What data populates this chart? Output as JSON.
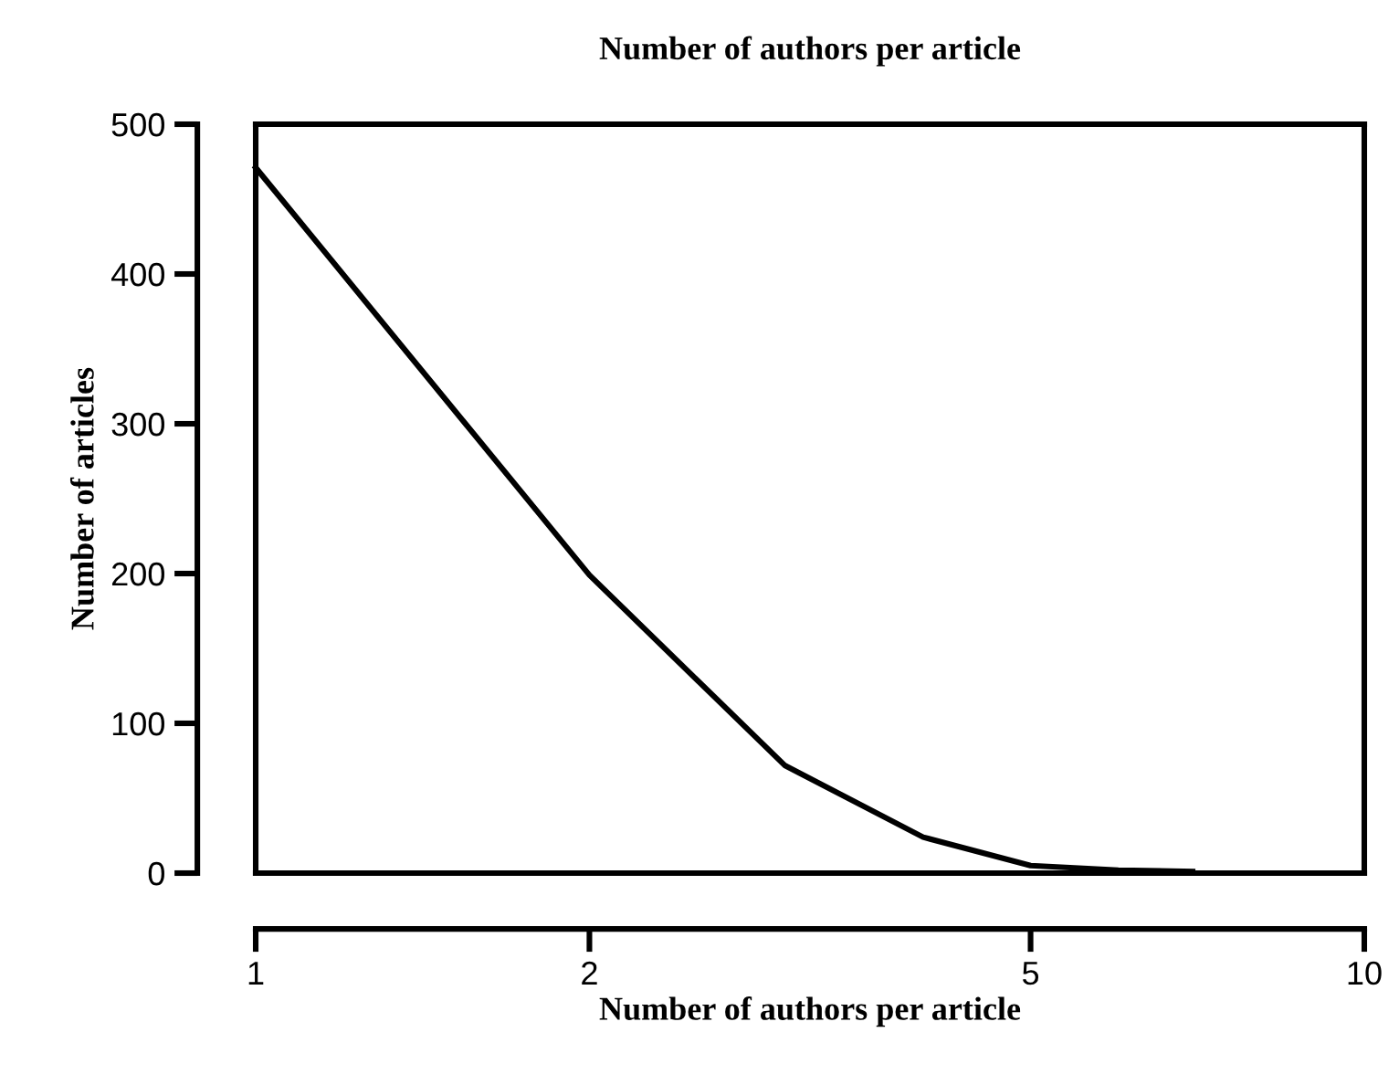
{
  "chart_data": {
    "type": "line",
    "title": "Number of authors per article",
    "xlabel": "Number of authors per article",
    "ylabel": "Number of articles",
    "x": [
      1,
      2,
      3,
      4,
      5,
      6,
      7
    ],
    "series": [
      {
        "color": "#000000",
        "values": [
          471,
          199,
          72,
          24,
          5,
          2,
          1
        ]
      }
    ],
    "log": "x",
    "xlim": [
      1,
      10
    ],
    "xticks": [
      1,
      2,
      5,
      10
    ],
    "ylim": [
      0,
      500
    ],
    "yticks": [
      0,
      100,
      200,
      300,
      400,
      500
    ],
    "grid": false,
    "marker": "none",
    "line_style": "solid"
  }
}
